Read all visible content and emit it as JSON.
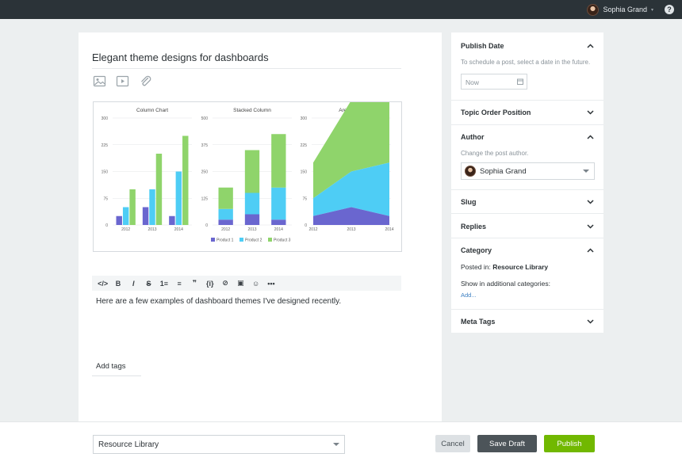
{
  "topbar": {
    "user_name": "Sophia Grand",
    "caret": "▾",
    "help": "?"
  },
  "editor": {
    "title": "Elegant theme designs for dashboards",
    "body": "Here are a few examples of dashboard themes I've designed recently.",
    "tags_label": "Add tags",
    "media_icons": [
      "image-icon",
      "video-icon",
      "paperclip-icon"
    ],
    "toolbar": [
      "</>",
      "B",
      "I",
      "S",
      "1≡",
      "≡",
      "❞",
      "{i}",
      "⊘",
      "▣",
      "☺",
      "•••"
    ]
  },
  "chart_data": [
    {
      "type": "bar",
      "title": "Column Chart",
      "categories": [
        "2012",
        "2013",
        "2014"
      ],
      "yticks": [
        "300",
        "225",
        "150",
        "75",
        "0"
      ],
      "ylim": [
        0,
        300
      ],
      "series": [
        {
          "name": "Product 1",
          "values": [
            25,
            50,
            25
          ]
        },
        {
          "name": "Product 2",
          "values": [
            50,
            100,
            150
          ]
        },
        {
          "name": "Product 3",
          "values": [
            100,
            200,
            250
          ]
        }
      ]
    },
    {
      "type": "bar",
      "stacked": true,
      "title": "Stacked Column",
      "categories": [
        "2012",
        "2013",
        "2014"
      ],
      "yticks": [
        "500",
        "375",
        "250",
        "125",
        "0"
      ],
      "ylim": [
        0,
        500
      ],
      "series": [
        {
          "name": "Product 1",
          "values": [
            25,
            50,
            25
          ]
        },
        {
          "name": "Product 2",
          "values": [
            50,
            100,
            150
          ]
        },
        {
          "name": "Product 3",
          "values": [
            100,
            200,
            250
          ]
        }
      ]
    },
    {
      "type": "area",
      "stacked": true,
      "title": "Area Chart",
      "categories": [
        "2012",
        "2013",
        "2014"
      ],
      "yticks": [
        "300",
        "225",
        "150",
        "75",
        "0"
      ],
      "ylim": [
        0,
        300
      ],
      "series": [
        {
          "name": "Product 1",
          "values": [
            25,
            50,
            25
          ]
        },
        {
          "name": "Product 2",
          "values": [
            50,
            100,
            150
          ]
        },
        {
          "name": "Product 3",
          "values": [
            100,
            200,
            250
          ]
        }
      ]
    }
  ],
  "legend": [
    "Product 1",
    "Product 2",
    "Product 3"
  ],
  "colors": {
    "p1": "#6a66cf",
    "p2": "#4ecdf5",
    "p3": "#8fd46b",
    "primary": "#71b800",
    "link": "#3c7fc1"
  },
  "sidebar": {
    "publish_date": {
      "title": "Publish Date",
      "hint": "To schedule a post, select a date in the future.",
      "placeholder": "Now"
    },
    "topic_order": {
      "title": "Topic Order Position"
    },
    "author": {
      "title": "Author",
      "hint": "Change the post author.",
      "value": "Sophia Grand"
    },
    "slug": {
      "title": "Slug"
    },
    "replies": {
      "title": "Replies"
    },
    "category": {
      "title": "Category",
      "posted_label": "Posted in:",
      "posted_value": "Resource Library",
      "additional": "Show in additional categories:",
      "add": "Add..."
    },
    "meta_tags": {
      "title": "Meta Tags"
    }
  },
  "bottom": {
    "category": "Resource Library",
    "cancel": "Cancel",
    "save_draft": "Save Draft",
    "publish": "Publish"
  }
}
